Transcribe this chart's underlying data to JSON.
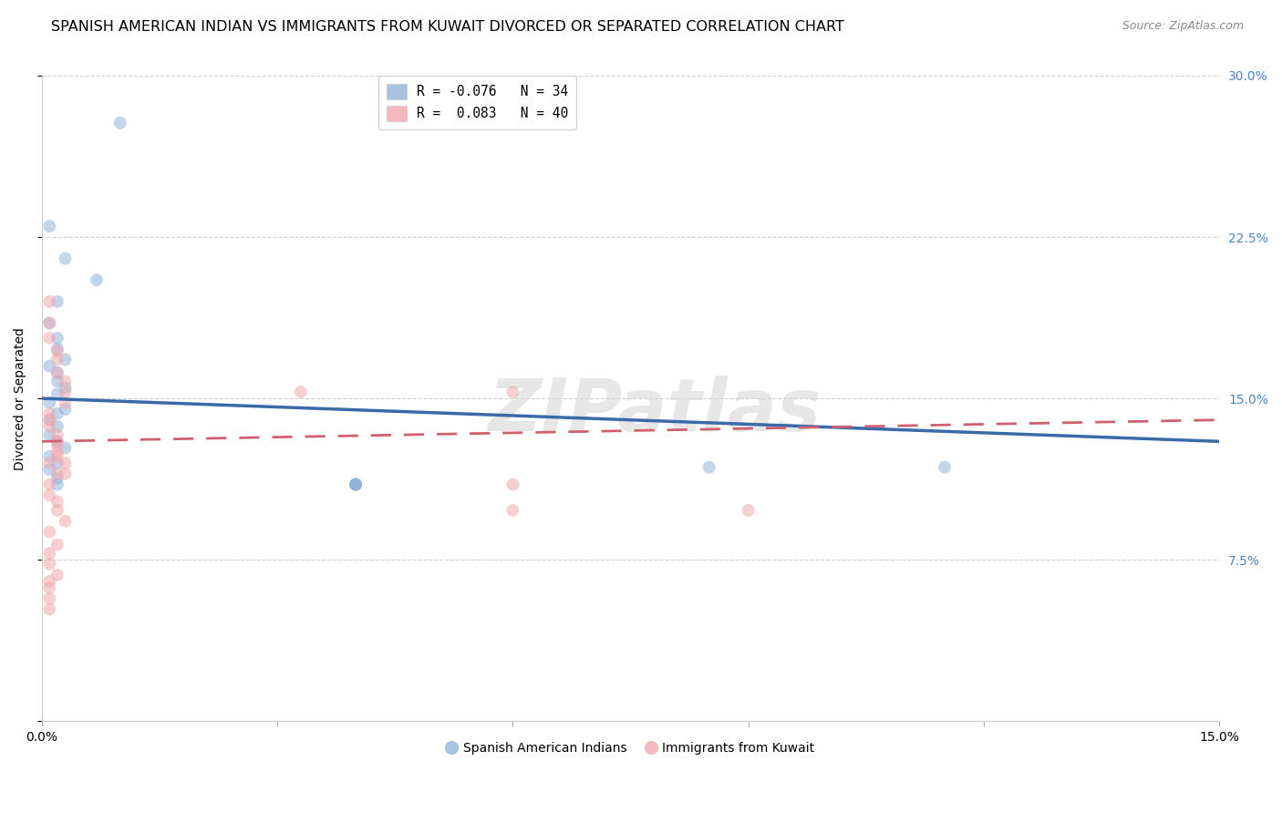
{
  "title": "SPANISH AMERICAN INDIAN VS IMMIGRANTS FROM KUWAIT DIVORCED OR SEPARATED CORRELATION CHART",
  "source": "Source: ZipAtlas.com",
  "ylabel": "Divorced or Separated",
  "xlim": [
    0.0,
    0.15
  ],
  "ylim": [
    0.0,
    0.3
  ],
  "xticks": [
    0.0,
    0.03,
    0.06,
    0.09,
    0.12,
    0.15
  ],
  "yticks": [
    0.0,
    0.075,
    0.15,
    0.225,
    0.3
  ],
  "legend_entries": [
    {
      "label": "R = -0.076   N = 34",
      "color": "#92b4d9"
    },
    {
      "label": "R =  0.083   N = 40",
      "color": "#f0a8b0"
    }
  ],
  "legend_labels_bottom": [
    "Spanish American Indians",
    "Immigrants from Kuwait"
  ],
  "blue_scatter_x": [
    0.01,
    0.001,
    0.003,
    0.007,
    0.002,
    0.001,
    0.002,
    0.002,
    0.003,
    0.001,
    0.002,
    0.002,
    0.003,
    0.002,
    0.001,
    0.003,
    0.002,
    0.001,
    0.002,
    0.001,
    0.002,
    0.003,
    0.001,
    0.002,
    0.001,
    0.04,
    0.04,
    0.04,
    0.04,
    0.04,
    0.085,
    0.115,
    0.002,
    0.002
  ],
  "blue_scatter_y": [
    0.278,
    0.23,
    0.215,
    0.205,
    0.195,
    0.185,
    0.178,
    0.173,
    0.168,
    0.165,
    0.162,
    0.158,
    0.155,
    0.152,
    0.148,
    0.145,
    0.143,
    0.14,
    0.137,
    0.133,
    0.13,
    0.127,
    0.123,
    0.12,
    0.117,
    0.11,
    0.11,
    0.11,
    0.11,
    0.11,
    0.118,
    0.118,
    0.113,
    0.11
  ],
  "pink_scatter_x": [
    0.001,
    0.001,
    0.001,
    0.002,
    0.002,
    0.002,
    0.003,
    0.003,
    0.003,
    0.001,
    0.001,
    0.001,
    0.002,
    0.002,
    0.002,
    0.003,
    0.003,
    0.001,
    0.001,
    0.002,
    0.002,
    0.003,
    0.001,
    0.002,
    0.001,
    0.001,
    0.002,
    0.001,
    0.001,
    0.001,
    0.002,
    0.002,
    0.001,
    0.002,
    0.033,
    0.06,
    0.06,
    0.06,
    0.09,
    0.001
  ],
  "pink_scatter_y": [
    0.195,
    0.185,
    0.178,
    0.172,
    0.168,
    0.162,
    0.158,
    0.153,
    0.148,
    0.143,
    0.14,
    0.137,
    0.133,
    0.128,
    0.123,
    0.12,
    0.115,
    0.11,
    0.105,
    0.102,
    0.098,
    0.093,
    0.088,
    0.082,
    0.078,
    0.073,
    0.068,
    0.062,
    0.057,
    0.052,
    0.13,
    0.125,
    0.12,
    0.115,
    0.153,
    0.153,
    0.11,
    0.098,
    0.098,
    0.065
  ],
  "background_color": "#ffffff",
  "grid_color": "#d0d0d0",
  "scatter_alpha": 0.55,
  "scatter_size": 100,
  "blue_color": "#92b4d9",
  "pink_color": "#f0a8b0",
  "blue_line_color": "#3a6aaa",
  "pink_line_color": "#d06070",
  "watermark_text": "ZIPatlas",
  "title_fontsize": 11.5,
  "axis_label_fontsize": 10,
  "tick_fontsize": 10
}
